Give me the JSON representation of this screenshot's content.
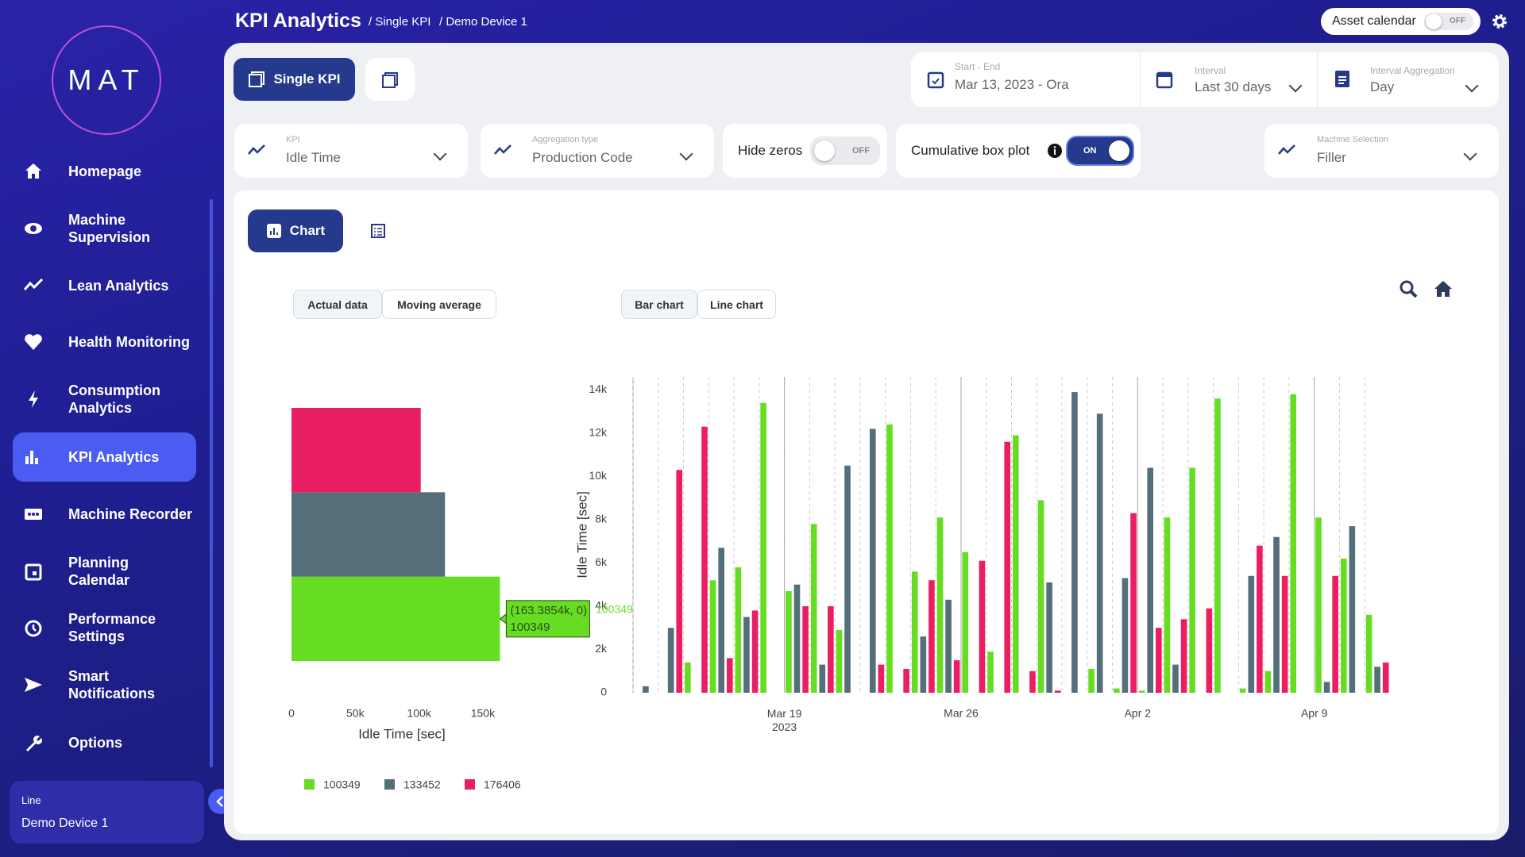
{
  "sidebar": {
    "logo": "MAT",
    "nav": [
      "Homepage",
      "Machine Supervision",
      "Lean Analytics",
      "Health Monitoring",
      "Consumption Analytics",
      "KPI Analytics",
      "Machine Recorder",
      "Planning Calendar",
      "Performance Settings",
      "Smart Notifications",
      "Options"
    ],
    "line_box": {
      "label": "Line",
      "value": "Demo Device 1"
    }
  },
  "header": {
    "title": "KPI Analytics",
    "breadcrumbs": [
      "/ Single KPI",
      "/ Demo Device 1"
    ],
    "asset_calendar": {
      "label": "Asset calendar",
      "state": "OFF"
    }
  },
  "toolbar": {
    "tab": "Single KPI",
    "date_range": {
      "label": "Start - End",
      "value": "Mar 13, 2023 - Ora"
    },
    "interval": {
      "label": "Interval",
      "value": "Last 30 days"
    },
    "interval_aggregation": {
      "label": "Interval Aggregation",
      "value": "Day"
    }
  },
  "filters": {
    "kpi": {
      "label": "KPI",
      "value": "Idle Time"
    },
    "aggregation_type": {
      "label": "Aggregation type",
      "value": "Production Code"
    },
    "hide_zeros": {
      "label": "Hide zeros",
      "state": "OFF"
    },
    "cumulative_box_plot": {
      "label": "Cumulative box plot",
      "state": "ON"
    },
    "machine_selection": {
      "label": "Machine Selection",
      "value": "Filler"
    }
  },
  "view_tab": "Chart",
  "data_buttons": [
    "Actual data",
    "Moving average"
  ],
  "chart_buttons": [
    "Bar chart",
    "Line chart"
  ],
  "chart_data": [
    {
      "type": "bar",
      "orientation": "h",
      "categories": [
        null
      ],
      "xlabel": "Idle Time [sec]",
      "series": [
        {
          "name": "100349",
          "color": "#66dd22",
          "values": [
            163385.4
          ]
        },
        {
          "name": "133452",
          "color": "#546e7a",
          "values": [
            120300
          ]
        },
        {
          "name": "176406",
          "color": "#e91e63",
          "values": [
            101300
          ]
        }
      ],
      "xlim": [
        0,
        165000
      ],
      "xticks": [
        0,
        {
          "value": 50000,
          "label": "50k"
        },
        {
          "value": 100000,
          "label": "100k"
        },
        {
          "value": 150000,
          "label": "150k"
        }
      ],
      "grid": false,
      "legend": "bottom",
      "tooltip": {
        "text": "(163.3854k, 0)",
        "name": "100349"
      }
    },
    {
      "type": "bar",
      "orientation": "v",
      "ylabel": "Idle Time [sec]",
      "x": [
        "2023-03-13",
        "2023-03-14",
        "2023-03-15",
        "2023-03-16",
        "2023-03-17",
        "2023-03-18",
        "2023-03-19",
        "2023-03-20",
        "2023-03-21",
        "2023-03-22",
        "2023-03-23",
        "2023-03-24",
        "2023-03-25",
        "2023-03-26",
        "2023-03-27",
        "2023-03-28",
        "2023-03-29",
        "2023-03-30",
        "2023-03-31",
        "2023-04-01",
        "2023-04-02",
        "2023-04-03",
        "2023-04-04",
        "2023-04-05",
        "2023-04-06",
        "2023-04-07",
        "2023-04-08",
        "2023-04-09",
        "2023-04-10",
        "2023-04-11"
      ],
      "series": [
        {
          "color": "#66dd22",
          "values": [
            0,
            0,
            1400,
            5200,
            5800,
            13400,
            4700,
            7800,
            2900,
            0,
            12400,
            5600,
            8100,
            6500,
            1900,
            11900,
            8900,
            0,
            1100,
            200,
            100,
            8100,
            10400,
            13600,
            200,
            1000,
            13800,
            8100,
            6200,
            3600
          ]
        },
        {
          "color": "#546e7a",
          "values": [
            300,
            3000,
            0,
            6700,
            3500,
            0,
            5000,
            1300,
            10500,
            12200,
            0,
            2600,
            4300,
            0,
            0,
            0,
            5100,
            13900,
            12900,
            5300,
            10400,
            1300,
            0,
            0,
            5400,
            7200,
            0,
            500,
            7700,
            1200
          ]
        },
        {
          "color": "#e91e63",
          "values": [
            0,
            10300,
            12300,
            1600,
            3800,
            0,
            4000,
            4000,
            0,
            1300,
            1100,
            5200,
            1500,
            6100,
            11600,
            1000,
            100,
            0,
            0,
            8300,
            3000,
            3400,
            3900,
            0,
            6800,
            5400,
            0,
            5400,
            0,
            1400
          ]
        }
      ],
      "xlim": [
        "2023-03-13",
        "2023-04-12"
      ],
      "xticks": [
        {
          "value": "2023-03-19",
          "label": "Mar 19\n2023"
        },
        {
          "value": "2023-03-26",
          "label": "Mar 26"
        },
        {
          "value": "2023-04-02",
          "label": "Apr 2"
        },
        {
          "value": "2023-04-09",
          "label": "Apr 9"
        }
      ],
      "ylim": [
        0,
        14600
      ],
      "yticks": [
        0,
        {
          "value": 2000,
          "label": "2k"
        },
        {
          "value": 4000,
          "label": "4k"
        },
        {
          "value": 6000,
          "label": "6k"
        },
        {
          "value": 8000,
          "label": "8k"
        },
        {
          "value": 10000,
          "label": "10k"
        },
        {
          "value": 12000,
          "label": "12k"
        },
        {
          "value": 14000,
          "label": "14k"
        }
      ],
      "grid": "x",
      "spike_label": "100349"
    }
  ]
}
